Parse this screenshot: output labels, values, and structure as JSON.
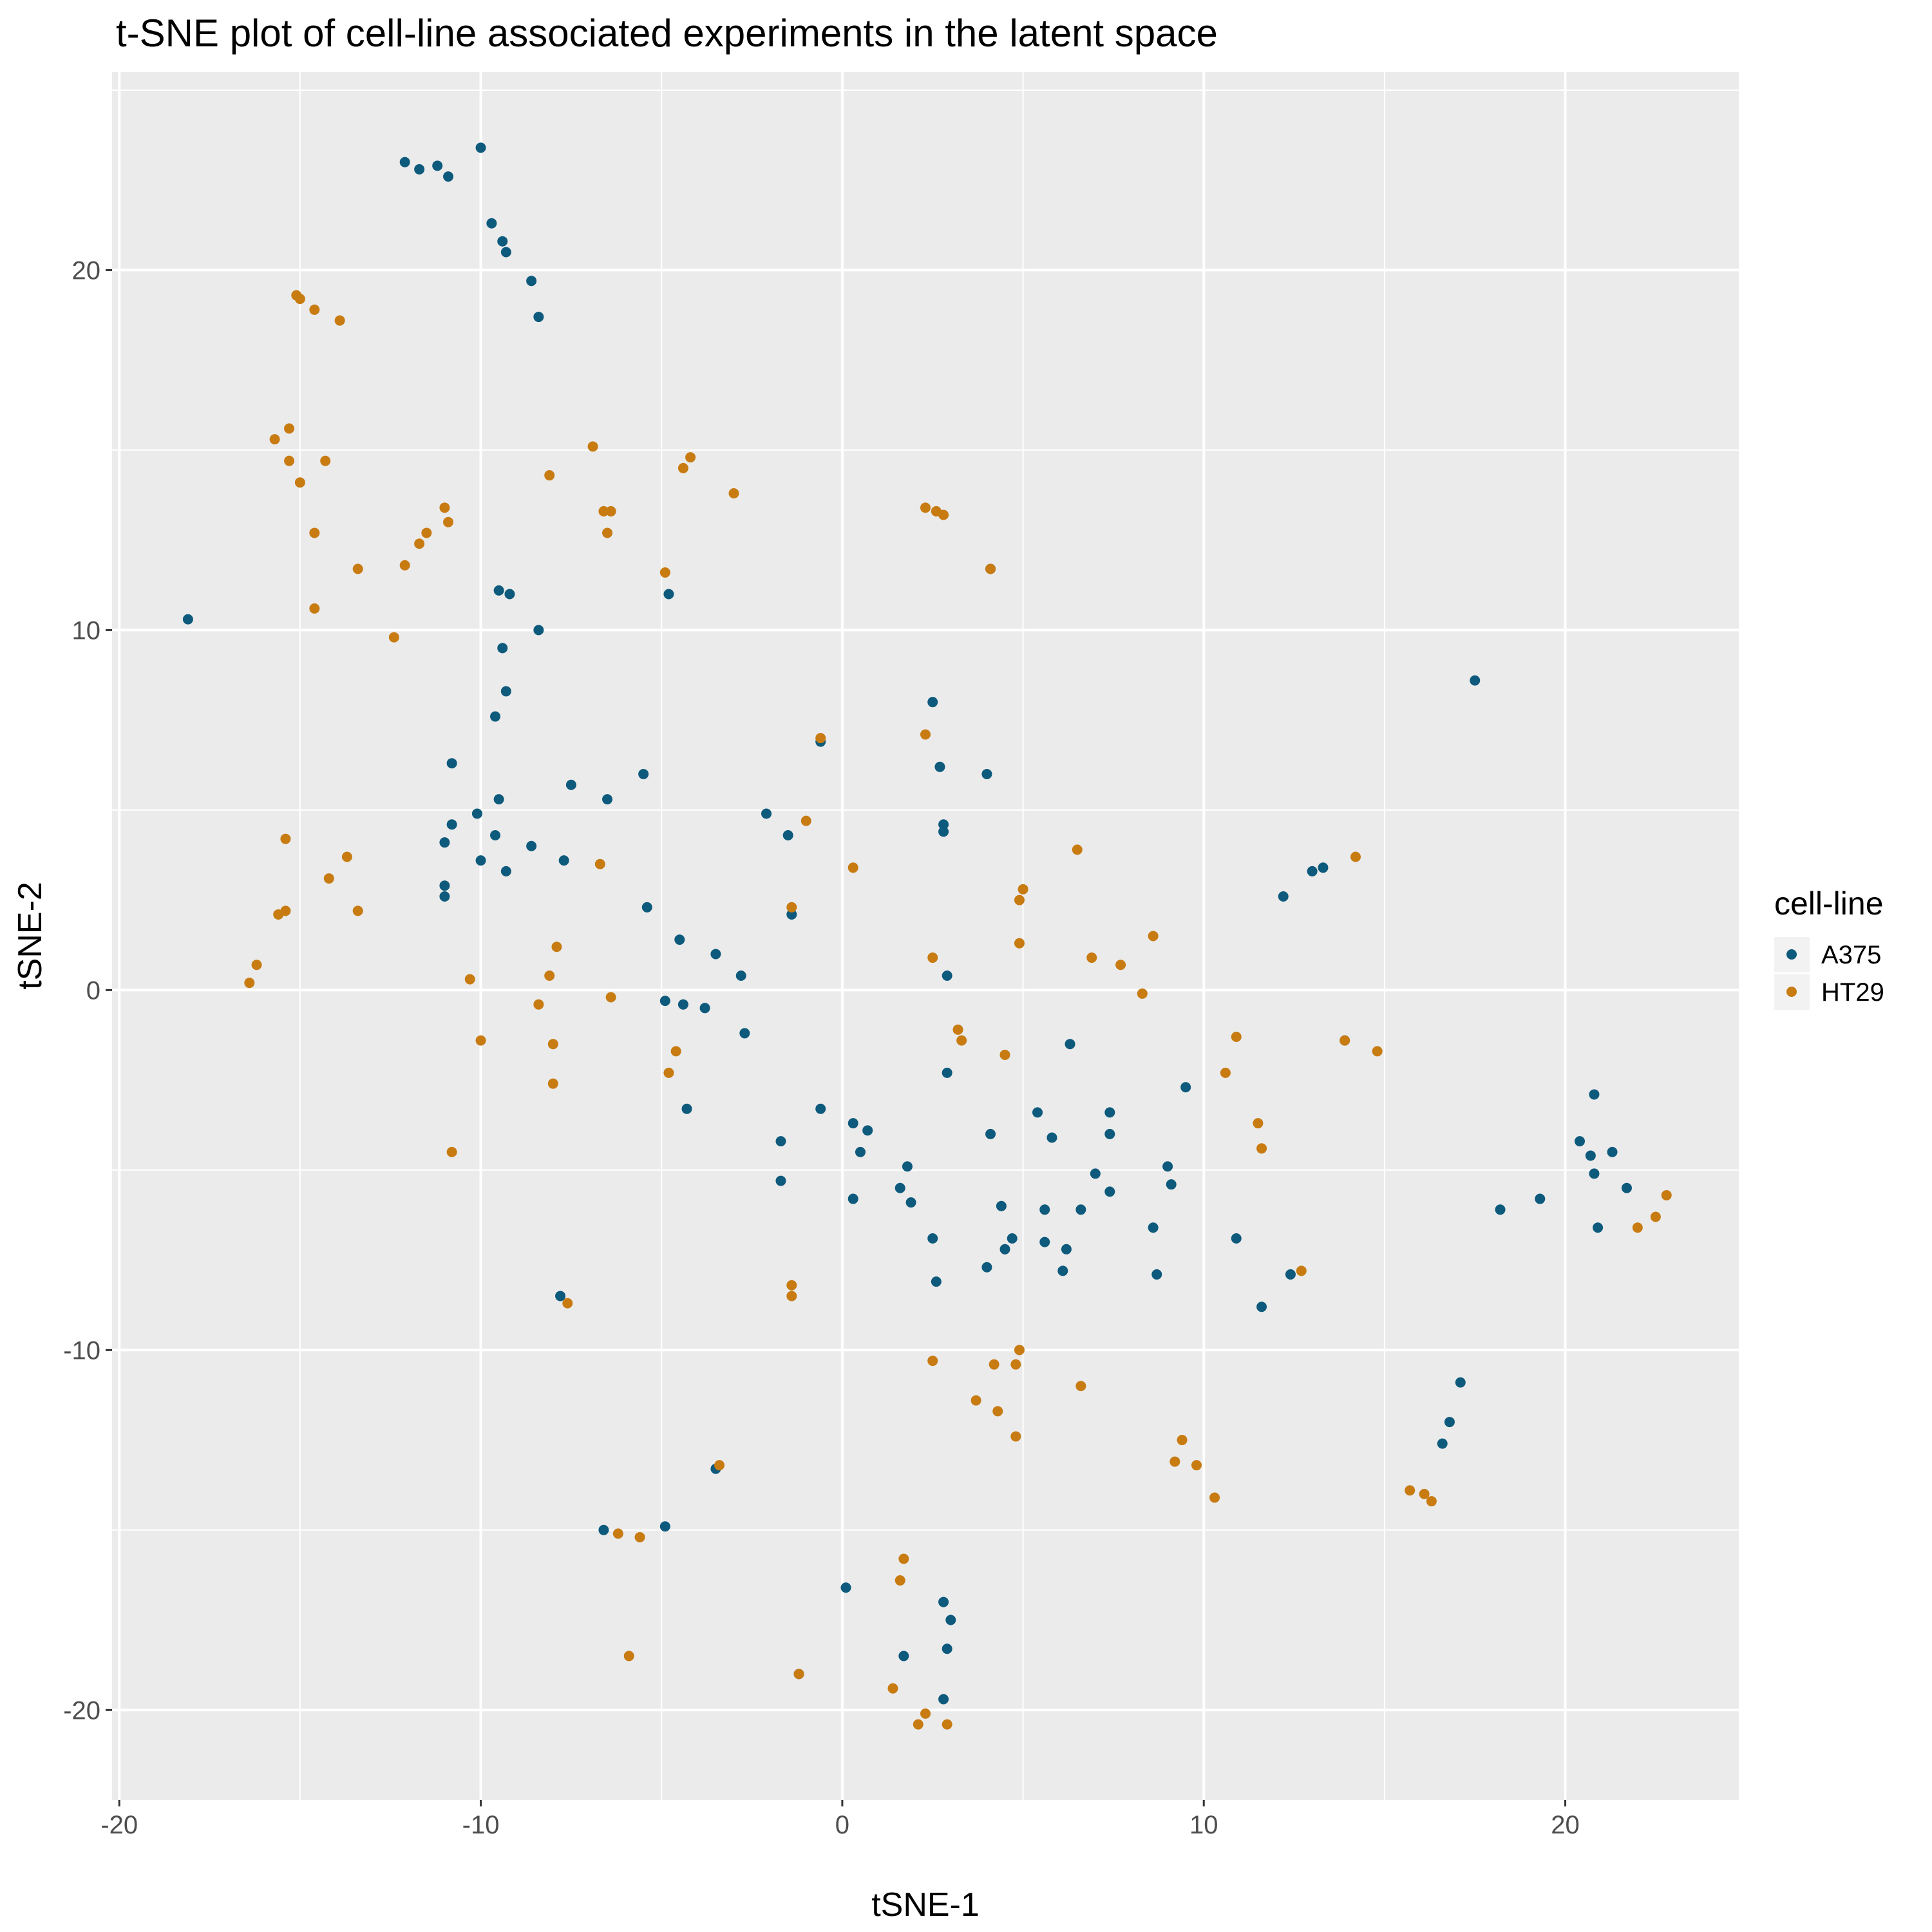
{
  "chart_data": {
    "type": "scatter",
    "title": "t-SNE plot of cell-line associated experiments in the latent space",
    "xlabel": "tSNE-1",
    "ylabel": "tSNE-2",
    "xlim": [
      -20.2,
      24.8
    ],
    "ylim": [
      -22.5,
      25.5
    ],
    "xticks": [
      -20,
      -10,
      0,
      10,
      20
    ],
    "yticks": [
      -20,
      -10,
      0,
      10,
      20
    ],
    "grid": true,
    "legend": {
      "title": "cell-line",
      "position": "right"
    },
    "series": [
      {
        "name": "A375",
        "color": "#0d5a7c",
        "points": [
          [
            -12.1,
            23.0
          ],
          [
            -11.7,
            22.8
          ],
          [
            -11.2,
            22.9
          ],
          [
            -10.9,
            22.6
          ],
          [
            -10.0,
            23.4
          ],
          [
            -9.7,
            21.3
          ],
          [
            -9.4,
            20.8
          ],
          [
            -9.3,
            20.5
          ],
          [
            -8.6,
            19.7
          ],
          [
            -8.4,
            18.7
          ],
          [
            -18.1,
            10.3
          ],
          [
            -9.5,
            11.1
          ],
          [
            -9.2,
            11.0
          ],
          [
            -8.4,
            10.0
          ],
          [
            -9.4,
            9.5
          ],
          [
            -9.3,
            8.3
          ],
          [
            -9.6,
            7.6
          ],
          [
            -10.8,
            6.3
          ],
          [
            -9.5,
            5.3
          ],
          [
            -7.5,
            5.7
          ],
          [
            -6.5,
            5.3
          ],
          [
            -10.1,
            4.9
          ],
          [
            -10.8,
            4.6
          ],
          [
            -11.0,
            4.1
          ],
          [
            -9.6,
            4.3
          ],
          [
            -8.6,
            4.0
          ],
          [
            -10.0,
            3.6
          ],
          [
            -9.3,
            3.3
          ],
          [
            -7.7,
            3.6
          ],
          [
            -11.0,
            2.9
          ],
          [
            -11.0,
            2.6
          ],
          [
            -5.5,
            6.0
          ],
          [
            -5.4,
            2.3
          ],
          [
            -4.8,
            11.0
          ],
          [
            -4.5,
            1.4
          ],
          [
            -3.5,
            1.0
          ],
          [
            -2.8,
            0.4
          ],
          [
            -4.4,
            -0.4
          ],
          [
            -4.9,
            -0.3
          ],
          [
            -3.8,
            -0.5
          ],
          [
            -2.7,
            -1.2
          ],
          [
            -2.1,
            4.9
          ],
          [
            -1.5,
            4.3
          ],
          [
            -1.4,
            2.1
          ],
          [
            -0.6,
            6.9
          ],
          [
            -4.3,
            -3.3
          ],
          [
            -0.6,
            -3.3
          ],
          [
            -1.7,
            -4.2
          ],
          [
            -1.7,
            -5.3
          ],
          [
            0.3,
            -3.7
          ],
          [
            0.7,
            -3.9
          ],
          [
            0.5,
            -4.5
          ],
          [
            0.3,
            -5.8
          ],
          [
            1.6,
            -5.5
          ],
          [
            1.8,
            -4.9
          ],
          [
            1.9,
            -5.9
          ],
          [
            2.5,
            -6.9
          ],
          [
            2.6,
            -8.1
          ],
          [
            2.5,
            8.0
          ],
          [
            2.7,
            6.2
          ],
          [
            2.8,
            4.6
          ],
          [
            2.8,
            4.4
          ],
          [
            2.9,
            0.4
          ],
          [
            2.9,
            -2.3
          ],
          [
            4.0,
            6.0
          ],
          [
            4.1,
            11.7
          ],
          [
            4.1,
            -4.0
          ],
          [
            4.0,
            -7.7
          ],
          [
            4.4,
            -6.0
          ],
          [
            4.5,
            -7.2
          ],
          [
            4.7,
            -6.9
          ],
          [
            5.4,
            -3.4
          ],
          [
            5.6,
            -6.1
          ],
          [
            5.6,
            -7.0
          ],
          [
            5.8,
            -4.1
          ],
          [
            6.1,
            -7.8
          ],
          [
            6.2,
            -7.2
          ],
          [
            6.3,
            -1.5
          ],
          [
            6.6,
            -6.1
          ],
          [
            7.0,
            -5.1
          ],
          [
            7.4,
            -3.4
          ],
          [
            7.4,
            -4.0
          ],
          [
            7.4,
            -5.6
          ],
          [
            8.6,
            -6.6
          ],
          [
            8.7,
            -7.9
          ],
          [
            9.0,
            -4.9
          ],
          [
            9.1,
            -5.4
          ],
          [
            9.5,
            -2.7
          ],
          [
            10.9,
            -6.9
          ],
          [
            11.6,
            -8.8
          ],
          [
            12.2,
            2.6
          ],
          [
            12.4,
            -7.9
          ],
          [
            13.0,
            3.3
          ],
          [
            13.3,
            3.4
          ],
          [
            13.9,
            -1.4
          ],
          [
            17.5,
            8.6
          ],
          [
            17.1,
            -10.9
          ],
          [
            16.8,
            -12.0
          ],
          [
            16.6,
            -12.6
          ],
          [
            18.2,
            -6.1
          ],
          [
            19.3,
            -5.8
          ],
          [
            20.4,
            -4.2
          ],
          [
            20.7,
            -4.6
          ],
          [
            20.8,
            -2.9
          ],
          [
            20.8,
            -5.1
          ],
          [
            20.9,
            -6.6
          ],
          [
            21.3,
            -4.5
          ],
          [
            21.7,
            -5.5
          ],
          [
            -7.8,
            -8.5
          ],
          [
            -3.5,
            -13.3
          ],
          [
            -6.6,
            -15.0
          ],
          [
            -4.9,
            -14.9
          ],
          [
            0.1,
            -16.6
          ],
          [
            -1.2,
            -19.0
          ],
          [
            1.7,
            -18.5
          ],
          [
            2.8,
            -17.0
          ],
          [
            3.0,
            -17.5
          ],
          [
            2.9,
            -18.3
          ],
          [
            2.8,
            -19.7
          ]
        ]
      },
      {
        "name": "HT29",
        "color": "#c77b11",
        "points": [
          [
            -15.1,
            19.3
          ],
          [
            -15.0,
            19.2
          ],
          [
            -14.6,
            18.9
          ],
          [
            -13.9,
            18.6
          ],
          [
            -15.7,
            15.3
          ],
          [
            -15.3,
            15.6
          ],
          [
            -15.3,
            14.7
          ],
          [
            -15.0,
            14.1
          ],
          [
            -14.3,
            14.7
          ],
          [
            -14.6,
            12.7
          ],
          [
            -13.4,
            11.7
          ],
          [
            -14.6,
            10.6
          ],
          [
            -12.4,
            9.8
          ],
          [
            -12.1,
            11.8
          ],
          [
            -11.7,
            12.4
          ],
          [
            -11.5,
            12.7
          ],
          [
            -11.0,
            13.4
          ],
          [
            -10.9,
            13.0
          ],
          [
            -8.1,
            14.3
          ],
          [
            -6.9,
            15.1
          ],
          [
            -6.6,
            13.3
          ],
          [
            -6.4,
            13.3
          ],
          [
            -6.5,
            12.7
          ],
          [
            -4.9,
            11.6
          ],
          [
            -4.4,
            14.5
          ],
          [
            -4.2,
            14.8
          ],
          [
            -3.0,
            13.8
          ],
          [
            -15.4,
            4.2
          ],
          [
            -13.7,
            3.7
          ],
          [
            -14.2,
            3.1
          ],
          [
            -13.4,
            2.2
          ],
          [
            -15.4,
            2.2
          ],
          [
            -15.6,
            2.1
          ],
          [
            -16.2,
            0.7
          ],
          [
            -16.4,
            0.2
          ],
          [
            -10.3,
            0.3
          ],
          [
            -10.0,
            -1.4
          ],
          [
            -10.8,
            -4.5
          ],
          [
            -8.1,
            0.4
          ],
          [
            -7.9,
            1.2
          ],
          [
            -8.4,
            -0.4
          ],
          [
            -8.0,
            -1.5
          ],
          [
            -8.0,
            -2.6
          ],
          [
            -6.7,
            3.5
          ],
          [
            -6.4,
            -0.2
          ],
          [
            -4.6,
            -1.7
          ],
          [
            -4.8,
            -2.3
          ],
          [
            -1.0,
            4.7
          ],
          [
            -1.4,
            2.3
          ],
          [
            -0.6,
            7.0
          ],
          [
            0.3,
            3.4
          ],
          [
            2.3,
            13.4
          ],
          [
            2.6,
            13.3
          ],
          [
            2.8,
            13.2
          ],
          [
            4.1,
            11.7
          ],
          [
            2.3,
            7.1
          ],
          [
            2.5,
            0.9
          ],
          [
            3.2,
            -1.1
          ],
          [
            3.3,
            -1.4
          ],
          [
            4.5,
            -1.8
          ],
          [
            5.0,
            2.8
          ],
          [
            4.9,
            2.5
          ],
          [
            4.9,
            1.3
          ],
          [
            6.5,
            3.9
          ],
          [
            6.9,
            0.9
          ],
          [
            7.7,
            0.7
          ],
          [
            8.3,
            -0.1
          ],
          [
            8.6,
            1.5
          ],
          [
            10.6,
            -2.3
          ],
          [
            10.9,
            -1.3
          ],
          [
            11.5,
            -3.7
          ],
          [
            11.6,
            -4.4
          ],
          [
            14.2,
            3.7
          ],
          [
            13.9,
            -1.4
          ],
          [
            14.8,
            -1.7
          ],
          [
            12.7,
            -7.8
          ],
          [
            -1.4,
            -8.2
          ],
          [
            -1.4,
            -8.5
          ],
          [
            -7.6,
            -8.7
          ],
          [
            2.5,
            -10.3
          ],
          [
            3.7,
            -11.4
          ],
          [
            4.2,
            -10.4
          ],
          [
            4.3,
            -11.7
          ],
          [
            4.8,
            -10.4
          ],
          [
            4.9,
            -10.0
          ],
          [
            4.8,
            -12.4
          ],
          [
            6.6,
            -11.0
          ],
          [
            9.4,
            -12.5
          ],
          [
            9.2,
            -13.1
          ],
          [
            9.8,
            -13.2
          ],
          [
            10.3,
            -14.1
          ],
          [
            15.7,
            -13.9
          ],
          [
            16.1,
            -14.0
          ],
          [
            16.3,
            -14.2
          ],
          [
            22.0,
            -6.6
          ],
          [
            22.5,
            -6.3
          ],
          [
            22.8,
            -5.7
          ],
          [
            -3.4,
            -13.2
          ],
          [
            -6.2,
            -15.1
          ],
          [
            -5.6,
            -15.2
          ],
          [
            -5.9,
            -18.5
          ],
          [
            -1.2,
            -19.0
          ],
          [
            1.7,
            -15.8
          ],
          [
            1.6,
            -16.4
          ],
          [
            1.4,
            -19.4
          ],
          [
            2.3,
            -20.1
          ],
          [
            2.1,
            -20.4
          ],
          [
            2.9,
            -20.4
          ]
        ]
      }
    ]
  }
}
